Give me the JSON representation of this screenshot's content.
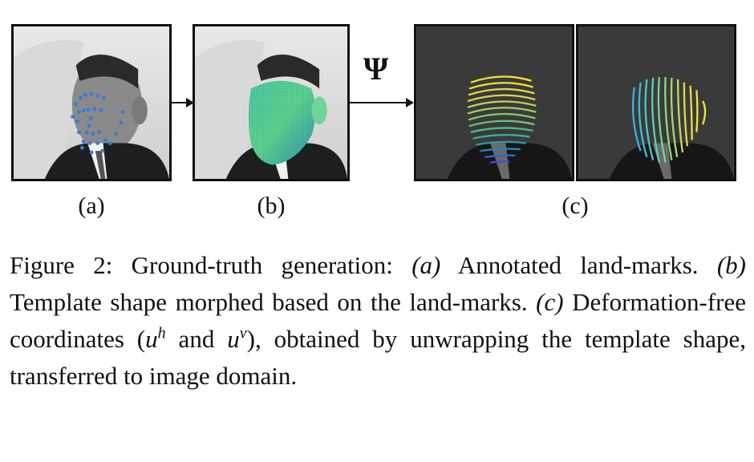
{
  "figure": {
    "labels": {
      "a": "(a)",
      "b": "(b)",
      "c": "(c)"
    },
    "psi": "Ψ",
    "caption": {
      "figure_label": "Figure 2:",
      "p1": " Ground-truth generation: ",
      "a_ref": "(a)",
      "p2": " Annotated land-marks. ",
      "b_ref": "(b)",
      "p3": " Template shape morphed based on the land-marks. ",
      "c_ref": "(c)",
      "p4": " Deformation-free coordinates (",
      "u1": "u",
      "sup_h": "h",
      "p5": " and ",
      "u2": "u",
      "sup_v": "v",
      "p6": "), obtained by unwrapping the template shape, transferred to image domain."
    }
  }
}
